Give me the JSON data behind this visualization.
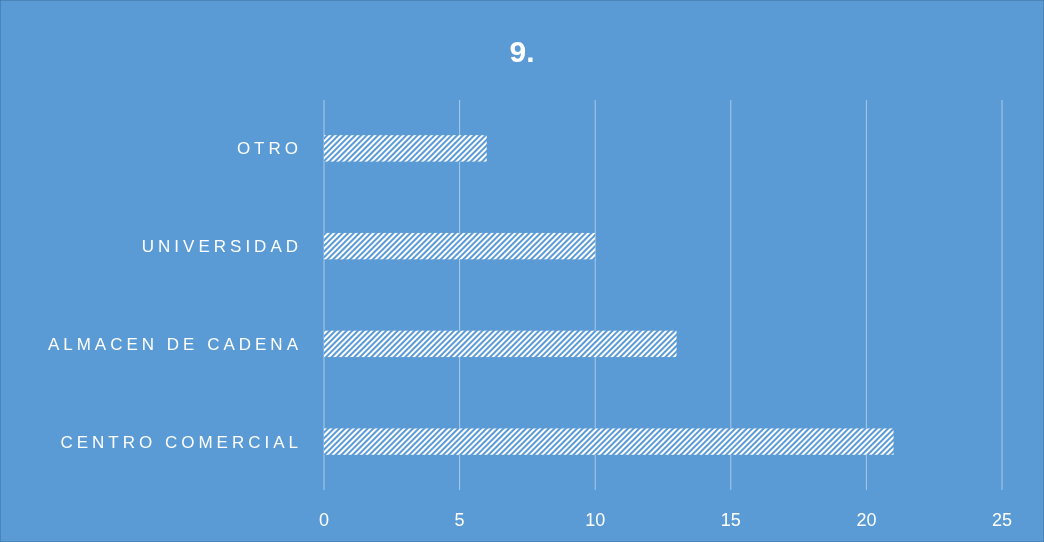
{
  "chart_data": {
    "type": "bar",
    "title": "9.",
    "orientation": "horizontal",
    "categories": [
      "OTRO",
      "UNIVERSIDAD",
      "ALMACEN DE CADENA",
      "CENTRO COMERCIAL"
    ],
    "values": [
      6,
      10,
      13,
      21
    ],
    "color": "#ffffff",
    "xlim": [
      0,
      25
    ],
    "xticks": [
      0,
      5,
      10,
      15,
      20,
      25
    ],
    "grid": "x"
  }
}
